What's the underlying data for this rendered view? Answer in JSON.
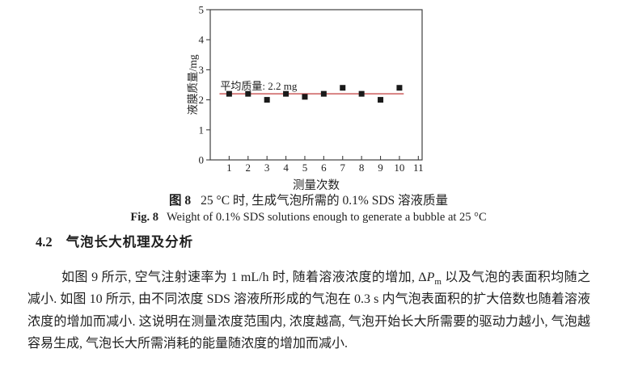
{
  "page": {
    "background": "#ffffff"
  },
  "figure": {
    "caption_zh": {
      "label": "图 8",
      "text": "25 °C 时, 生成气泡所需的 0.1% SDS 溶液质量"
    },
    "caption_en": {
      "label": "Fig. 8",
      "text": "Weight of 0.1% SDS solutions enough to generate a bubble at 25 °C"
    }
  },
  "section": {
    "number": "4.2",
    "title": "气泡长大机理及分析",
    "paragraph": {
      "t1": "如图 9 所示, 空气注射速率为 1 mL/h 时, 随着溶液浓度的增加, Δ",
      "var_base": "P",
      "var_sub": "m",
      "t2": " 以及气泡的表面积均随之减小. 如图 10 所示, 由不同浓度 SDS 溶液所形成的气泡在 0.3 s 内气泡表面积的扩大倍数也随着溶液浓度的增加而减小. 这说明在测量浓度范围内, 浓度越高, 气泡开始长大所需要的驱动力越小, 气泡越容易生成, 气泡长大所需消耗的能量随浓度的增加而减小."
    }
  },
  "chart_data": {
    "type": "scatter",
    "title": "",
    "x": [
      1,
      2,
      3,
      4,
      5,
      6,
      7,
      8,
      9,
      10
    ],
    "values": [
      2.2,
      2.2,
      2.0,
      2.2,
      2.1,
      2.2,
      2.4,
      2.2,
      2.0,
      2.4
    ],
    "xlabel": "测量次数",
    "ylabel": "液膜质量/mg",
    "xlim": [
      0,
      11.2
    ],
    "ylim": [
      0,
      5
    ],
    "xticks": [
      1,
      2,
      3,
      4,
      5,
      6,
      7,
      8,
      9,
      10,
      11
    ],
    "yticks": [
      0,
      1,
      2,
      3,
      4,
      5
    ],
    "grid": false,
    "legend_position": "none",
    "marker": "square",
    "marker_size": 7,
    "marker_color": "#1a1a1a",
    "frame_color": "#3f3f3f",
    "mean_line": {
      "y": 2.2,
      "x_start": 0.49,
      "x_end": 10.23,
      "color": "#c23b3b",
      "label": "平均质量: 2.2 mg",
      "label_x": 0.53,
      "label_y": 2.34
    }
  }
}
